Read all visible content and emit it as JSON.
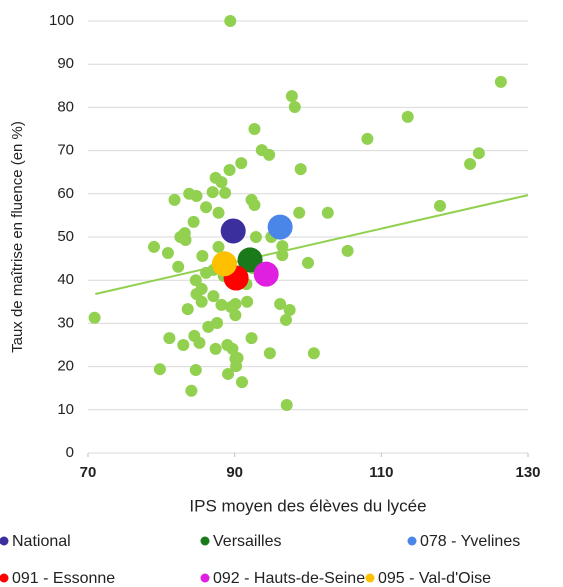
{
  "chart_data": {
    "type": "scatter",
    "x_label": "IPS moyen des élèves du lycée",
    "y_label": "Taux de maîtrise en fluence (en %)",
    "xlim": [
      70,
      130
    ],
    "xticks": [
      70,
      90,
      110,
      130
    ],
    "ylim": [
      0,
      100
    ],
    "yticks": [
      0,
      10,
      20,
      30,
      40,
      50,
      60,
      70,
      80,
      90,
      100
    ],
    "grid": true,
    "points": {
      "color": "#92d050",
      "x": [
        70.9,
        79.8,
        79.0,
        80.9,
        81.1,
        81.8,
        82.3,
        82.6,
        83.2,
        83.0,
        83.3,
        83.6,
        83.8,
        84.1,
        84.4,
        84.5,
        84.7,
        84.8,
        84.7,
        85.2,
        85.5,
        85.5,
        85.6,
        84.8,
        86.1,
        86.4,
        86.1,
        87.1,
        87.1,
        87.0,
        87.4,
        87.4,
        87.6,
        87.8,
        87.8,
        88.2,
        88.2,
        88.5,
        88.7,
        89.0,
        89.1,
        89.4,
        89.3,
        89.5,
        89.7,
        90.1,
        90.1,
        90.1,
        90.2,
        90.4,
        91.0,
        90.9,
        91.6,
        91.7,
        91.6,
        92.3,
        92.3,
        92.7,
        92.5,
        92.7,
        92.9,
        93.7,
        94.7,
        94.8,
        95.0,
        95.4,
        96.2,
        96.5,
        96.5,
        97.0,
        97.1,
        97.5,
        97.8,
        98.2,
        98.8,
        99.0,
        100.0,
        100.8,
        102.7,
        105.4,
        108.1,
        113.6,
        118.0,
        122.1,
        123.3,
        126.3
      ],
      "y": [
        31.3,
        19.4,
        47.7,
        46.3,
        26.6,
        58.6,
        43.1,
        50.0,
        50.9,
        25.0,
        49.3,
        33.3,
        60.0,
        14.4,
        53.5,
        27.1,
        40.0,
        36.8,
        19.2,
        25.5,
        35.0,
        38.0,
        45.6,
        59.5,
        56.9,
        29.2,
        41.7,
        42.4,
        36.3,
        60.4,
        24.1,
        63.7,
        30.1,
        47.7,
        55.6,
        62.7,
        34.3,
        41.0,
        60.2,
        25.0,
        18.3,
        100,
        65.5,
        33.8,
        24.1,
        21.8,
        31.9,
        34.5,
        20.1,
        22.0,
        16.4,
        67.1,
        45.1,
        35.0,
        39.1,
        26.6,
        58.6,
        57.4,
        42.8,
        75.0,
        50.0,
        70.1,
        69.0,
        23.1,
        50.0,
        52.3,
        34.5,
        47.9,
        45.8,
        30.8,
        11.1,
        33.1,
        82.6,
        80.1,
        55.6,
        65.7,
        44.0,
        23.1,
        55.6,
        46.8,
        72.7,
        77.8,
        57.2,
        66.9,
        69.4,
        85.9
      ]
    },
    "trendline": {
      "color": "#92d050",
      "x": [
        71,
        130
      ],
      "y": [
        36.8,
        59.7
      ]
    },
    "series": [
      {
        "name": "National",
        "color": "#3b2f9e",
        "x": [
          89.8
        ],
        "y": [
          51.4
        ]
      },
      {
        "name": "Versailles",
        "color": "#1a7a1a",
        "x": [
          92.1
        ],
        "y": [
          44.7
        ]
      },
      {
        "name": "078 - Yvelines",
        "color": "#4a86e8",
        "x": [
          96.2
        ],
        "y": [
          52.3
        ]
      },
      {
        "name": "091 - Essonne",
        "color": "#ff0000",
        "x": [
          90.2
        ],
        "y": [
          40.5
        ]
      },
      {
        "name": "092 - Hauts-de-Seine",
        "color": "#e020e0",
        "x": [
          94.3
        ],
        "y": [
          41.4
        ]
      },
      {
        "name": "095 - Val-d'Oise",
        "color": "#ffc000",
        "x": [
          88.6
        ],
        "y": [
          43.8
        ]
      }
    ]
  }
}
